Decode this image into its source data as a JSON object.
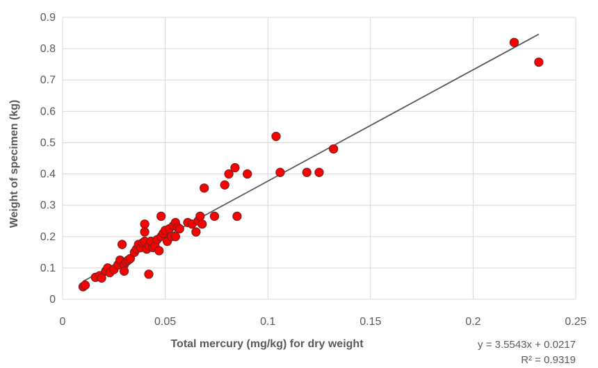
{
  "chart_data": {
    "type": "scatter",
    "title": "",
    "xlabel": "Total mercury (mg/kg) for dry weight",
    "ylabel": "Weight of specimen (kg)",
    "xlim": [
      0,
      0.25
    ],
    "ylim": [
      0,
      0.9
    ],
    "x_ticks": [
      "0",
      "0.05",
      "0.1",
      "0.15",
      "0.2",
      "0.25"
    ],
    "y_ticks": [
      "0",
      "0.1",
      "0.2",
      "0.3",
      "0.4",
      "0.5",
      "0.6",
      "0.7",
      "0.8",
      "0.9"
    ],
    "grid": "vertical and horizontal",
    "marker_color": "#ff0000",
    "marker_edge_color": "#7f1f1f",
    "trendline_color": "#595959",
    "trendline": {
      "slope": 3.5543,
      "intercept": 0.0217,
      "x_range": [
        0.01,
        0.232
      ],
      "equation": "y = 3.5543x + 0.0217",
      "r_squared": "R² = 0.9319"
    },
    "points": [
      {
        "x": 0.01,
        "y": 0.04
      },
      {
        "x": 0.011,
        "y": 0.045
      },
      {
        "x": 0.016,
        "y": 0.07
      },
      {
        "x": 0.018,
        "y": 0.075
      },
      {
        "x": 0.019,
        "y": 0.068
      },
      {
        "x": 0.021,
        "y": 0.09
      },
      {
        "x": 0.022,
        "y": 0.1
      },
      {
        "x": 0.023,
        "y": 0.085
      },
      {
        "x": 0.025,
        "y": 0.095
      },
      {
        "x": 0.027,
        "y": 0.11
      },
      {
        "x": 0.028,
        "y": 0.125
      },
      {
        "x": 0.029,
        "y": 0.175
      },
      {
        "x": 0.03,
        "y": 0.11
      },
      {
        "x": 0.03,
        "y": 0.09
      },
      {
        "x": 0.031,
        "y": 0.12
      },
      {
        "x": 0.032,
        "y": 0.125
      },
      {
        "x": 0.033,
        "y": 0.13
      },
      {
        "x": 0.035,
        "y": 0.15
      },
      {
        "x": 0.036,
        "y": 0.16
      },
      {
        "x": 0.037,
        "y": 0.175
      },
      {
        "x": 0.038,
        "y": 0.165
      },
      {
        "x": 0.039,
        "y": 0.18
      },
      {
        "x": 0.04,
        "y": 0.24
      },
      {
        "x": 0.04,
        "y": 0.215
      },
      {
        "x": 0.04,
        "y": 0.185
      },
      {
        "x": 0.041,
        "y": 0.16
      },
      {
        "x": 0.042,
        "y": 0.08
      },
      {
        "x": 0.042,
        "y": 0.17
      },
      {
        "x": 0.043,
        "y": 0.185
      },
      {
        "x": 0.044,
        "y": 0.165
      },
      {
        "x": 0.045,
        "y": 0.17
      },
      {
        "x": 0.046,
        "y": 0.19
      },
      {
        "x": 0.047,
        "y": 0.155
      },
      {
        "x": 0.048,
        "y": 0.2
      },
      {
        "x": 0.048,
        "y": 0.265
      },
      {
        "x": 0.049,
        "y": 0.21
      },
      {
        "x": 0.05,
        "y": 0.22
      },
      {
        "x": 0.051,
        "y": 0.185
      },
      {
        "x": 0.052,
        "y": 0.225
      },
      {
        "x": 0.053,
        "y": 0.2
      },
      {
        "x": 0.054,
        "y": 0.235
      },
      {
        "x": 0.055,
        "y": 0.245
      },
      {
        "x": 0.055,
        "y": 0.2
      },
      {
        "x": 0.056,
        "y": 0.23
      },
      {
        "x": 0.057,
        "y": 0.225
      },
      {
        "x": 0.061,
        "y": 0.245
      },
      {
        "x": 0.063,
        "y": 0.24
      },
      {
        "x": 0.065,
        "y": 0.215
      },
      {
        "x": 0.066,
        "y": 0.25
      },
      {
        "x": 0.067,
        "y": 0.265
      },
      {
        "x": 0.068,
        "y": 0.24
      },
      {
        "x": 0.069,
        "y": 0.355
      },
      {
        "x": 0.074,
        "y": 0.265
      },
      {
        "x": 0.079,
        "y": 0.365
      },
      {
        "x": 0.081,
        "y": 0.4
      },
      {
        "x": 0.084,
        "y": 0.42
      },
      {
        "x": 0.085,
        "y": 0.265
      },
      {
        "x": 0.09,
        "y": 0.4
      },
      {
        "x": 0.104,
        "y": 0.52
      },
      {
        "x": 0.106,
        "y": 0.405
      },
      {
        "x": 0.119,
        "y": 0.405
      },
      {
        "x": 0.125,
        "y": 0.405
      },
      {
        "x": 0.132,
        "y": 0.48
      },
      {
        "x": 0.22,
        "y": 0.82
      },
      {
        "x": 0.232,
        "y": 0.757
      }
    ]
  }
}
